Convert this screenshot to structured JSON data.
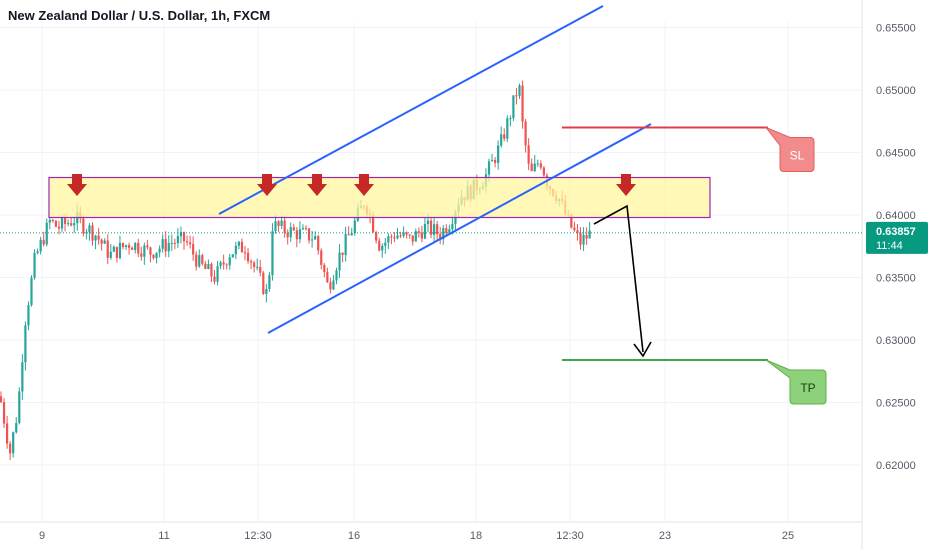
{
  "title": "New Zealand Dollar / U.S. Dollar, 1h, FXCM",
  "currency": "USD",
  "chart_data": {
    "type": "candlestick",
    "y_ticks": [
      "0.65500",
      "0.65000",
      "0.64500",
      "0.64000",
      "0.63500",
      "0.63000",
      "0.62500",
      "0.62000"
    ],
    "y_tick_values": [
      0.655,
      0.65,
      0.645,
      0.64,
      0.635,
      0.63,
      0.625,
      0.62
    ],
    "ylim": [
      0.6175,
      0.6565
    ],
    "x_ticks": [
      "9",
      "11",
      "12:30",
      "16",
      "18",
      "12:30",
      "23",
      "25"
    ],
    "current_price": "0.63857",
    "countdown": "11:44",
    "sl_label": "SL",
    "tp_label": "TP",
    "levels": {
      "sl": 0.647,
      "tp": 0.6284,
      "resistance_top": 0.6422,
      "resistance_bottom": 0.6406
    },
    "colors": {
      "up": "#26a69a",
      "down": "#ef5350",
      "channel": "#2962ff",
      "sl": "#e03b4b",
      "tp": "#3ea84a",
      "zone_fill": "#fff59d",
      "zone_border": "#9c27b0",
      "arrow": "#c62828",
      "price_badge": "#089981"
    },
    "path": [
      [
        0,
        0.6255
      ],
      [
        10,
        0.621
      ],
      [
        18,
        0.6245
      ],
      [
        25,
        0.6315
      ],
      [
        35,
        0.6365
      ],
      [
        50,
        0.6395
      ],
      [
        58,
        0.639
      ],
      [
        75,
        0.6397
      ],
      [
        95,
        0.6385
      ],
      [
        110,
        0.6368
      ],
      [
        130,
        0.6378
      ],
      [
        150,
        0.637
      ],
      [
        170,
        0.6378
      ],
      [
        185,
        0.638
      ],
      [
        200,
        0.636
      ],
      [
        215,
        0.635
      ],
      [
        230,
        0.637
      ],
      [
        245,
        0.6375
      ],
      [
        260,
        0.6348
      ],
      [
        268,
        0.6335
      ],
      [
        272,
        0.6392
      ],
      [
        285,
        0.6388
      ],
      [
        300,
        0.6385
      ],
      [
        315,
        0.6382
      ],
      [
        328,
        0.6342
      ],
      [
        338,
        0.6365
      ],
      [
        350,
        0.6385
      ],
      [
        365,
        0.6412
      ],
      [
        380,
        0.6375
      ],
      [
        395,
        0.6385
      ],
      [
        410,
        0.638
      ],
      [
        425,
        0.639
      ],
      [
        440,
        0.6385
      ],
      [
        450,
        0.6395
      ],
      [
        460,
        0.6415
      ],
      [
        472,
        0.642
      ],
      [
        485,
        0.643
      ],
      [
        500,
        0.6455
      ],
      [
        510,
        0.648
      ],
      [
        519,
        0.6505
      ],
      [
        522,
        0.6475
      ],
      [
        530,
        0.643
      ],
      [
        540,
        0.6445
      ],
      [
        548,
        0.6425
      ],
      [
        558,
        0.6415
      ],
      [
        568,
        0.6395
      ],
      [
        580,
        0.6378
      ],
      [
        590,
        0.6385
      ]
    ]
  }
}
